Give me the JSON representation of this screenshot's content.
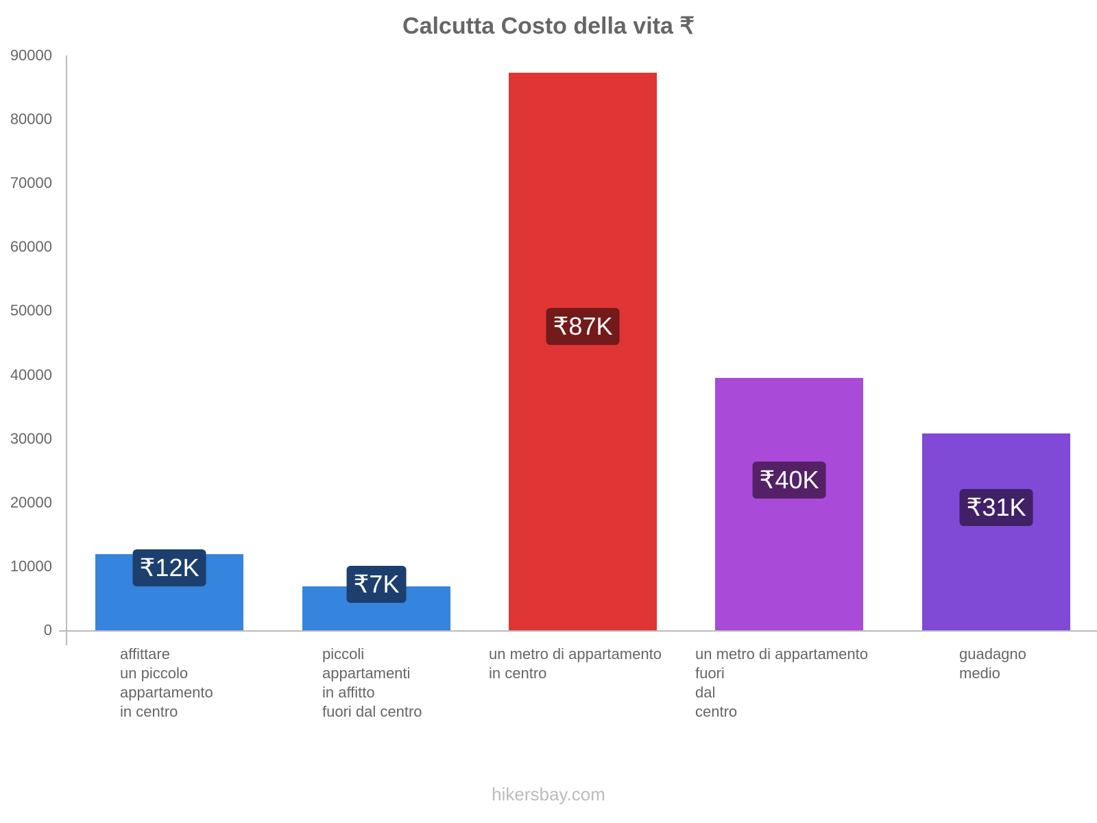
{
  "chart_data": {
    "type": "bar",
    "title": "Calcutta Costo della vita ₹",
    "xlabel": "",
    "ylabel": "",
    "ylim": [
      0,
      90000
    ],
    "yticks": [
      0,
      10000,
      20000,
      30000,
      40000,
      50000,
      60000,
      70000,
      80000,
      90000
    ],
    "grid": false,
    "legend": null,
    "categories": [
      "affittare un piccolo appartamento in centro",
      "piccoli appartamenti in affitto fuori dal centro",
      "un metro di appartamento in centro",
      "un metro di appartamento fuori dal centro",
      "guadagno medio"
    ],
    "values": [
      11900,
      6900,
      87300,
      39500,
      30800
    ],
    "data_labels": [
      "₹12K",
      "₹7K",
      "₹87K",
      "₹40K",
      "₹31K"
    ],
    "colors": [
      "#3584dd",
      "#3584dd",
      "#e03535",
      "#a94ad8",
      "#8049d6"
    ]
  },
  "labels": {
    "x": [
      "affittare\nun piccolo\nappartamento\nin centro",
      "piccoli\nappartamenti\nin affitto\nfuori dal centro",
      "un metro di appartamento\nin centro",
      "un metro di appartamento\nfuori\ndal\ncentro",
      "guadagno\nmedio"
    ],
    "y": [
      "0",
      "10000",
      "20000",
      "30000",
      "40000",
      "50000",
      "60000",
      "70000",
      "80000",
      "90000"
    ]
  },
  "badge_colors": [
    "#1c3f6e",
    "#1c3f6e",
    "#731a1a",
    "#542166",
    "#402166"
  ],
  "footer": "hikersbay.com"
}
